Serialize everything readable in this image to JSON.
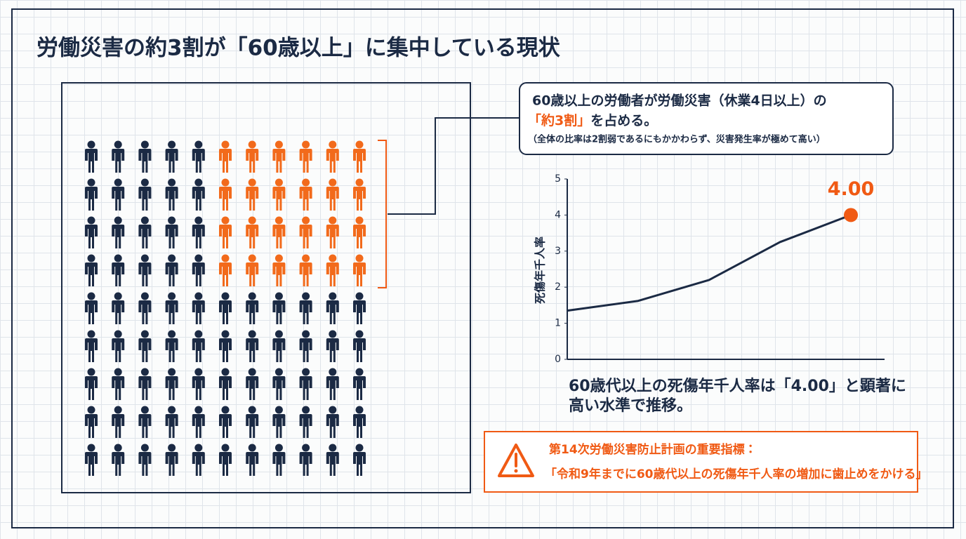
{
  "title": "労働災害の約3割が「60歳以上」に集中している現状",
  "pictogram": {
    "total": 99,
    "highlighted": 24
  },
  "callout": {
    "line1": "60歳以上の労働者が労働災害（休業4日以上）の",
    "highlight": "「約3割」",
    "line2_rest": "を占める。",
    "note": "（全体の比率は2割弱であるにもかかわらず、災害発生率が極めて高い）"
  },
  "chart_data": {
    "type": "line",
    "ylabel": "死傷年千人率",
    "categories": [
      null,
      null,
      null,
      null,
      null
    ],
    "series": [
      {
        "name": null,
        "color": "#1b2a44",
        "values": [
          1.35,
          1.62,
          2.2,
          3.25,
          4.0
        ],
        "value_labels": [
          null,
          null,
          null,
          null,
          "4.00"
        ],
        "highlight_color": "#f05a14"
      }
    ],
    "ylim": [
      0,
      5
    ],
    "yticks": [
      0,
      1,
      2,
      3,
      4,
      5
    ]
  },
  "caption": {
    "line1": "60歳代以上の死傷年千人率は「4.00」と顕著に",
    "line2": "高い水準で推移。"
  },
  "warning": {
    "line1": "第14次労働災害防止計画の重要指標：",
    "line2": "「令和9年までに60歳代以上の死傷年千人率の増加に歯止めをかける」"
  }
}
